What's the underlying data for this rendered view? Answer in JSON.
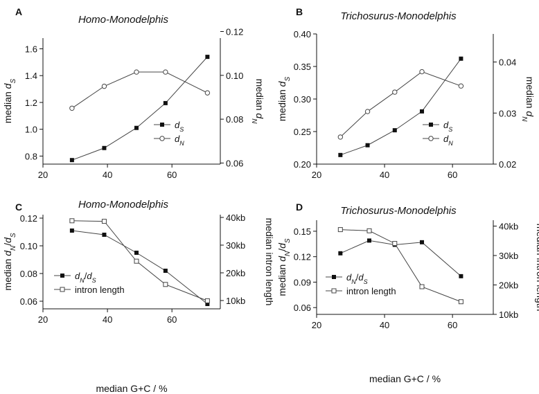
{
  "chart_data": [
    {
      "panel": "A",
      "type": "line",
      "title": "Homo-Monodelphis",
      "xlabel": "",
      "ylabel": [
        "median ",
        "d",
        "S"
      ],
      "y2label": [
        "median ",
        "d",
        "N"
      ],
      "xlim": [
        20,
        75
      ],
      "xticks": [
        20,
        40,
        60
      ],
      "ylim": [
        0.74,
        1.68
      ],
      "yticks": [
        0.8,
        1.0,
        1.2,
        1.4,
        1.6
      ],
      "ytick_labels": [
        "0.8",
        "1.0",
        "1.2",
        "1.4",
        "1.6"
      ],
      "y2lim": [
        0.0595,
        0.117
      ],
      "y2ticks": [
        0.06,
        0.08,
        0.1,
        0.12
      ],
      "y2tick_labels": [
        "0.06",
        "0.08",
        "0.10",
        "0.12"
      ],
      "legend_position": "center-right",
      "series": [
        {
          "name": [
            "d",
            "S"
          ],
          "axis": "left",
          "marker": "filled-square",
          "x": [
            29,
            39,
            49,
            58,
            71
          ],
          "y": [
            0.77,
            0.86,
            1.01,
            1.195,
            1.54
          ]
        },
        {
          "name": [
            "d",
            "N"
          ],
          "axis": "right",
          "marker": "open-circle",
          "x": [
            29,
            39,
            49,
            58,
            71
          ],
          "y": [
            0.085,
            0.095,
            0.1015,
            0.1015,
            0.092
          ]
        }
      ]
    },
    {
      "panel": "B",
      "type": "line",
      "title": "Trichosurus-Monodelphis",
      "xlabel": "",
      "ylabel": [
        "median ",
        "d",
        "S"
      ],
      "y2label": [
        "median ",
        "d",
        "N"
      ],
      "xlim": [
        20,
        72
      ],
      "xticks": [
        20,
        40,
        60
      ],
      "ylim": [
        0.2,
        0.4
      ],
      "yticks": [
        0.2,
        0.25,
        0.3,
        0.35,
        0.4
      ],
      "ytick_labels": [
        "0.20",
        "0.25",
        "0.30",
        "0.35",
        "0.40"
      ],
      "y2lim": [
        0.02,
        0.0455
      ],
      "y2ticks": [
        0.02,
        0.03,
        0.04
      ],
      "y2tick_labels": [
        "0.02",
        "0.03",
        "0.04"
      ],
      "legend_position": "center-right",
      "series": [
        {
          "name": [
            "d",
            "S"
          ],
          "axis": "left",
          "marker": "filled-square",
          "x": [
            27,
            35,
            43,
            51,
            62.5
          ],
          "y": [
            0.214,
            0.229,
            0.252,
            0.281,
            0.362
          ]
        },
        {
          "name": [
            "d",
            "N"
          ],
          "axis": "right",
          "marker": "open-circle",
          "x": [
            27,
            35,
            43,
            51,
            62.5
          ],
          "y": [
            0.0253,
            0.0303,
            0.0341,
            0.0381,
            0.0353
          ]
        }
      ]
    },
    {
      "panel": "C",
      "type": "line",
      "title": "Homo-Monodelphis",
      "xlabel": "median G+C / %",
      "ylabel": [
        "median ",
        "d",
        "N",
        "/",
        "d",
        "S"
      ],
      "y2label": [
        "median intron length"
      ],
      "xlim": [
        20,
        75
      ],
      "xticks": [
        20,
        40,
        60
      ],
      "ylim": [
        0.0545,
        0.1225
      ],
      "yticks": [
        0.06,
        0.08,
        0.1,
        0.12
      ],
      "ytick_labels": [
        "0.06",
        "0.08",
        "0.10",
        "0.12"
      ],
      "y2lim": [
        7,
        41
      ],
      "y2ticks": [
        10,
        20,
        30,
        40
      ],
      "y2tick_labels": [
        "10kb",
        "20kb",
        "30kb",
        "40kb"
      ],
      "legend_position": "bottom-left",
      "series": [
        {
          "name": [
            "d",
            "N",
            "/",
            "d",
            "S"
          ],
          "axis": "left",
          "marker": "filled-square",
          "x": [
            29,
            39,
            49,
            58,
            71
          ],
          "y": [
            0.111,
            0.108,
            0.095,
            0.082,
            0.058
          ]
        },
        {
          "name": [
            "intron length"
          ],
          "axis": "right",
          "marker": "open-square",
          "x": [
            29,
            39,
            49,
            58,
            71
          ],
          "y": [
            38.8,
            38.6,
            24.2,
            15.8,
            9.9
          ]
        }
      ]
    },
    {
      "panel": "D",
      "type": "line",
      "title": "Trichosurus-Monodelphis",
      "xlabel": "median G+C / %",
      "ylabel": [
        "median ",
        "d",
        "N",
        "/",
        "d",
        "S"
      ],
      "y2label": [
        "median intron length"
      ],
      "xlim": [
        20,
        72
      ],
      "xticks": [
        20,
        40,
        60
      ],
      "ylim": [
        0.052,
        0.163
      ],
      "yticks": [
        0.06,
        0.09,
        0.12,
        0.15
      ],
      "ytick_labels": [
        "0.06",
        "0.09",
        "0.12",
        "0.15"
      ],
      "y2lim": [
        10,
        42
      ],
      "y2ticks": [
        10,
        20,
        30,
        40
      ],
      "y2tick_labels": [
        "10kb",
        "20kb",
        "30kb",
        "40kb"
      ],
      "legend_position": "bottom-left",
      "series": [
        {
          "name": [
            "d",
            "N",
            "/",
            "d",
            "S"
          ],
          "axis": "left",
          "marker": "filled-square",
          "x": [
            27,
            35.5,
            43,
            51,
            62.5
          ],
          "y": [
            0.124,
            0.139,
            0.134,
            0.137,
            0.097
          ]
        },
        {
          "name": [
            "intron length"
          ],
          "axis": "right",
          "marker": "open-square",
          "x": [
            27,
            35.5,
            43,
            51,
            62.5
          ],
          "y": [
            38.8,
            38.4,
            34.1,
            19.4,
            14.3
          ]
        }
      ]
    }
  ]
}
